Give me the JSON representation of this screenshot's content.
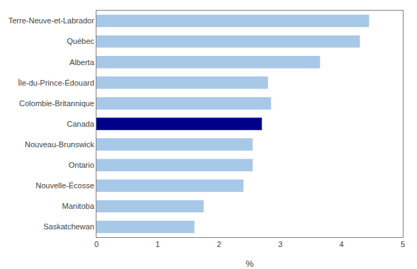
{
  "chart_data": {
    "type": "bar",
    "orientation": "horizontal",
    "categories": [
      "Saskatchewan",
      "Manitoba",
      "Nouvelle-Écosse",
      "Ontario",
      "Nouveau-Brunswick",
      "Canada",
      "Colombie-Britannique",
      "Île-du-Prince-Édouard",
      "Alberta",
      "Québec",
      "Terre-Neuve-et-Labrador"
    ],
    "values": [
      1.6,
      1.75,
      2.4,
      2.55,
      2.55,
      2.7,
      2.85,
      2.8,
      3.65,
      4.3,
      4.45
    ],
    "colors": [
      "#a8c8e8",
      "#a8c8e8",
      "#a8c8e8",
      "#a8c8e8",
      "#a8c8e8",
      "#00008b",
      "#a8c8e8",
      "#a8c8e8",
      "#a8c8e8",
      "#a8c8e8",
      "#a8c8e8"
    ],
    "xlabel": "%",
    "xlim": [
      0,
      5
    ],
    "xticks": [
      0,
      1,
      2,
      3,
      4,
      5
    ],
    "grid": false
  }
}
